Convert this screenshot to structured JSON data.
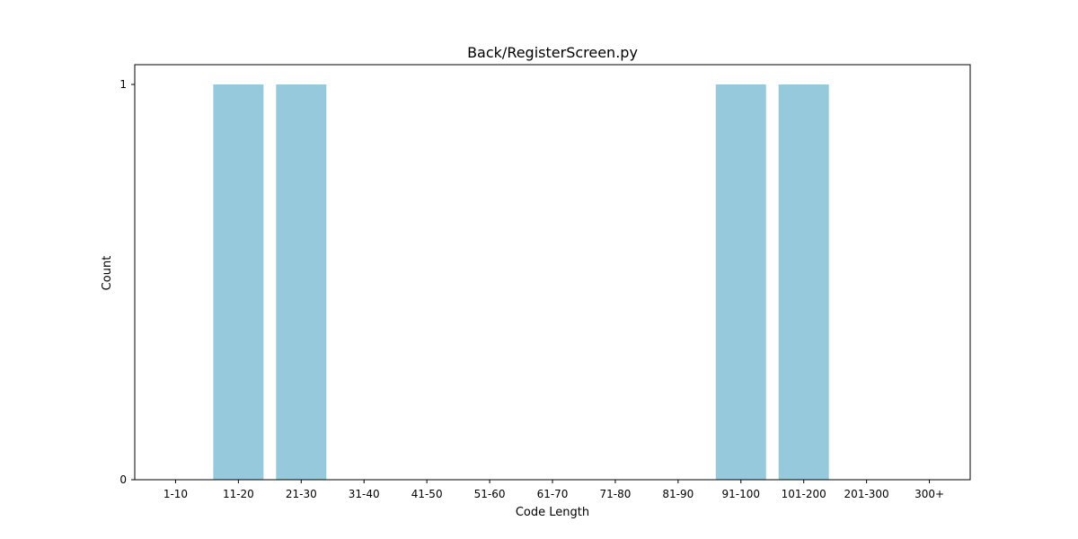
{
  "chart_data": {
    "type": "bar",
    "title": "Back/RegisterScreen.py",
    "xlabel": "Code Length",
    "ylabel": "Count",
    "categories": [
      "1-10",
      "11-20",
      "21-30",
      "31-40",
      "41-50",
      "51-60",
      "61-70",
      "71-80",
      "81-90",
      "91-100",
      "101-200",
      "201-300",
      "300+"
    ],
    "values": [
      0,
      1,
      1,
      0,
      0,
      0,
      0,
      0,
      0,
      1,
      1,
      0,
      0
    ],
    "yticks": [
      0,
      1
    ],
    "ytick_labels": [
      "0",
      "1"
    ],
    "ylim": [
      0,
      1.05
    ],
    "grid": false,
    "bar_color": "#96c9dc"
  }
}
